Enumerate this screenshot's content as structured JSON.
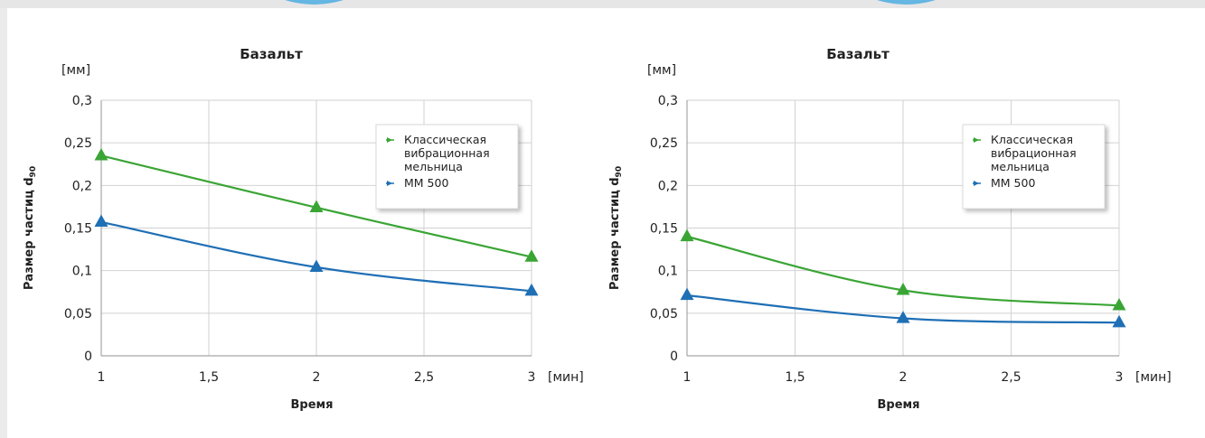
{
  "colors": {
    "classic": "#3aa535",
    "mm500": "#1f6fb5",
    "grid": "#d2d2d2",
    "axis": "#a6a6a6"
  },
  "chart_data": [
    {
      "type": "line",
      "title": "Базальт",
      "ylabel": "Размер частиц d",
      "ylabel_sub": "90",
      "xlabel": "Время",
      "y_unit": "[мм]",
      "x_unit": "[мин]",
      "x_ticks": [
        "1",
        "1,5",
        "2",
        "2,5",
        "3"
      ],
      "y_ticks": [
        "0",
        "0,05",
        "0,1",
        "0,15",
        "0,2",
        "0,25",
        "0,3"
      ],
      "xlim": [
        1,
        3
      ],
      "ylim": [
        0,
        0.3
      ],
      "grid": true,
      "legend": "top-right",
      "series": [
        {
          "name": "Классическая вибрационная мельница",
          "name_lines": [
            "Классическая",
            "вибрационная",
            "мельница"
          ],
          "color": "#3aa535",
          "x": [
            1,
            2,
            3
          ],
          "y": [
            0.235,
            0.174,
            0.116
          ]
        },
        {
          "name": "MM 500",
          "name_lines": [
            "MM 500"
          ],
          "color": "#1f6fb5",
          "x": [
            1,
            2,
            3
          ],
          "y": [
            0.157,
            0.104,
            0.076
          ]
        }
      ]
    },
    {
      "type": "line",
      "title": "Базальт",
      "ylabel": "Размер частиц d",
      "ylabel_sub": "90",
      "xlabel": "Время",
      "y_unit": "[мм]",
      "x_unit": "[мин]",
      "x_ticks": [
        "1",
        "1,5",
        "2",
        "2,5",
        "3"
      ],
      "y_ticks": [
        "0",
        "0,05",
        "0,1",
        "0,15",
        "0,2",
        "0,25",
        "0,3"
      ],
      "xlim": [
        1,
        3
      ],
      "ylim": [
        0,
        0.3
      ],
      "grid": true,
      "legend": "top-right",
      "series": [
        {
          "name": "Классическая вибрационная мельница",
          "name_lines": [
            "Классическая",
            "вибрационная",
            "мельница"
          ],
          "color": "#3aa535",
          "x": [
            1,
            2,
            3
          ],
          "y": [
            0.14,
            0.077,
            0.059
          ]
        },
        {
          "name": "MM 500",
          "name_lines": [
            "MM 500"
          ],
          "color": "#1f6fb5",
          "x": [
            1,
            2,
            3
          ],
          "y": [
            0.071,
            0.044,
            0.039
          ]
        }
      ]
    }
  ]
}
